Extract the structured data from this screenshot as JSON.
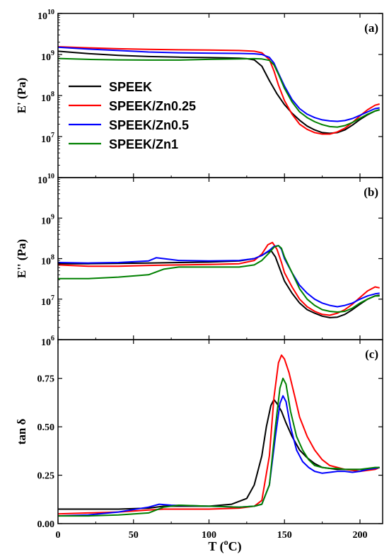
{
  "figure": {
    "x_label_text": "T (",
    "x_label_degree": "o",
    "x_label_unit": "C)"
  },
  "chart_data": [
    {
      "type": "line",
      "panel_label": "(a)",
      "ylabel_main": "E' (Pa)",
      "y_scale": "log",
      "ylim": [
        1000000,
        10000000000
      ],
      "y_ticks": [
        {
          "value": 10000000,
          "base": "10",
          "exp": "7"
        },
        {
          "value": 100000000,
          "base": "10",
          "exp": "8"
        },
        {
          "value": 1000000000,
          "base": "10",
          "exp": "9"
        },
        {
          "value": 10000000000,
          "base": "10",
          "exp": "10"
        }
      ],
      "xlim": [
        0,
        215
      ],
      "legend_position": "center-left",
      "series": [
        {
          "name": "SPEEK",
          "color": "#000000",
          "x": [
            0,
            20,
            40,
            60,
            80,
            100,
            110,
            120,
            125,
            130,
            135,
            140,
            145,
            150,
            155,
            160,
            165,
            170,
            175,
            180,
            185,
            190,
            195,
            200,
            205,
            210,
            213
          ],
          "y": [
            1200000000,
            1050000000,
            950000000,
            890000000,
            860000000,
            840000000,
            830000000,
            810000000,
            790000000,
            740000000,
            520000000,
            230000000,
            110000000,
            60000000,
            37000000,
            25000000,
            18000000,
            14500000,
            12500000,
            12000000,
            12500000,
            14500000,
            19000000,
            26000000,
            34000000,
            42000000,
            45000000
          ]
        },
        {
          "name": "SPEEK/Zn0.25",
          "color": "#ff0000",
          "x": [
            0,
            20,
            40,
            60,
            80,
            100,
            120,
            130,
            135,
            140,
            143,
            146,
            150,
            155,
            160,
            165,
            170,
            175,
            180,
            185,
            190,
            195,
            200,
            205,
            210,
            213
          ],
          "y": [
            1550000000,
            1450000000,
            1380000000,
            1330000000,
            1300000000,
            1280000000,
            1250000000,
            1200000000,
            1100000000,
            750000000,
            400000000,
            180000000,
            75000000,
            35000000,
            20000000,
            15000000,
            12500000,
            11500000,
            11500000,
            13000000,
            16000000,
            22000000,
            32000000,
            45000000,
            58000000,
            62000000
          ]
        },
        {
          "name": "SPEEK/Zn0.5",
          "color": "#0000ff",
          "x": [
            0,
            20,
            40,
            60,
            80,
            100,
            120,
            130,
            135,
            140,
            143,
            146,
            150,
            155,
            160,
            165,
            170,
            175,
            180,
            185,
            190,
            195,
            200,
            205,
            210,
            213
          ],
          "y": [
            1500000000,
            1350000000,
            1250000000,
            1150000000,
            1100000000,
            1080000000,
            1060000000,
            1040000000,
            1000000000,
            850000000,
            620000000,
            350000000,
            170000000,
            80000000,
            48000000,
            35000000,
            29000000,
            25500000,
            24000000,
            23500000,
            24500000,
            27500000,
            33000000,
            40000000,
            48000000,
            50000000
          ]
        },
        {
          "name": "SPEEK/Zn1",
          "color": "#008000",
          "x": [
            0,
            20,
            40,
            60,
            80,
            100,
            120,
            130,
            135,
            140,
            143,
            146,
            150,
            155,
            160,
            165,
            170,
            175,
            180,
            185,
            190,
            195,
            200,
            205,
            210,
            213
          ],
          "y": [
            800000000,
            760000000,
            740000000,
            730000000,
            730000000,
            760000000,
            780000000,
            790000000,
            780000000,
            720000000,
            560000000,
            330000000,
            150000000,
            70000000,
            40000000,
            29000000,
            23000000,
            19500000,
            17500000,
            17000000,
            18500000,
            22000000,
            28000000,
            35000000,
            42000000,
            45000000
          ]
        }
      ]
    },
    {
      "type": "line",
      "panel_label": "(b)",
      "ylabel_main": "E'' (Pa)",
      "y_scale": "log",
      "ylim": [
        1000000,
        10000000000
      ],
      "y_ticks": [
        {
          "value": 1000000,
          "base": "10",
          "exp": "6"
        },
        {
          "value": 10000000,
          "base": "10",
          "exp": "7"
        },
        {
          "value": 100000000,
          "base": "10",
          "exp": "8"
        },
        {
          "value": 1000000000,
          "base": "10",
          "exp": "9"
        },
        {
          "value": 10000000000,
          "base": "10",
          "exp": "10"
        }
      ],
      "xlim": [
        0,
        215
      ],
      "series": [
        {
          "name": "SPEEK",
          "color": "#000000",
          "x": [
            0,
            20,
            40,
            60,
            80,
            100,
            120,
            130,
            135,
            138,
            141,
            144,
            147,
            150,
            155,
            160,
            165,
            170,
            175,
            180,
            185,
            190,
            195,
            200,
            205,
            210,
            213
          ],
          "y": [
            75000000,
            75000000,
            76000000,
            78000000,
            80000000,
            82000000,
            88000000,
            100000000,
            120000000,
            140000000,
            160000000,
            110000000,
            55000000,
            28000000,
            14000000,
            8000000,
            5500000,
            4500000,
            3800000,
            3500000,
            3600000,
            4200000,
            5500000,
            7500000,
            10000000,
            12000000,
            12500000
          ]
        },
        {
          "name": "SPEEK/Zn0.25",
          "color": "#ff0000",
          "x": [
            0,
            20,
            40,
            60,
            80,
            100,
            120,
            130,
            135,
            139,
            142,
            145,
            148,
            150,
            155,
            160,
            165,
            170,
            175,
            180,
            185,
            190,
            195,
            200,
            205,
            210,
            213
          ],
          "y": [
            70000000,
            65000000,
            65000000,
            68000000,
            70000000,
            72000000,
            75000000,
            90000000,
            130000000,
            220000000,
            250000000,
            170000000,
            80000000,
            45000000,
            20000000,
            10000000,
            6500000,
            5000000,
            4200000,
            4000000,
            4500000,
            5500000,
            7500000,
            11000000,
            16000000,
            20000000,
            19000000
          ]
        },
        {
          "name": "SPEEK/Zn0.5",
          "color": "#0000ff",
          "x": [
            0,
            20,
            40,
            60,
            65,
            70,
            80,
            100,
            120,
            130,
            135,
            140,
            143,
            146,
            148,
            150,
            155,
            160,
            165,
            170,
            175,
            180,
            185,
            190,
            195,
            200,
            205,
            210,
            213
          ],
          "y": [
            80000000,
            78000000,
            80000000,
            88000000,
            105000000,
            100000000,
            90000000,
            88000000,
            90000000,
            100000000,
            120000000,
            160000000,
            200000000,
            210000000,
            170000000,
            100000000,
            45000000,
            22000000,
            14000000,
            10000000,
            8000000,
            7000000,
            6500000,
            7000000,
            8000000,
            10000000,
            12000000,
            13500000,
            14000000
          ]
        },
        {
          "name": "SPEEK/Zn1",
          "color": "#008000",
          "x": [
            0,
            20,
            40,
            60,
            70,
            80,
            100,
            120,
            130,
            135,
            140,
            143,
            146,
            148,
            150,
            155,
            160,
            165,
            170,
            175,
            180,
            185,
            190,
            195,
            200,
            205,
            210,
            213
          ],
          "y": [
            32000000,
            32000000,
            35000000,
            40000000,
            55000000,
            62000000,
            62000000,
            62000000,
            70000000,
            90000000,
            140000000,
            190000000,
            210000000,
            180000000,
            110000000,
            45000000,
            18000000,
            10000000,
            7000000,
            5500000,
            5000000,
            4800000,
            5000000,
            6000000,
            8000000,
            10000000,
            12000000,
            12000000
          ]
        }
      ]
    },
    {
      "type": "line",
      "panel_label": "(c)",
      "ylabel_main": "tan δ",
      "y_scale": "linear",
      "ylim": [
        0,
        0.95
      ],
      "y_ticks": [
        {
          "value": 0.0,
          "label": "0.00"
        },
        {
          "value": 0.25,
          "label": "0.25"
        },
        {
          "value": 0.5,
          "label": "0.50"
        },
        {
          "value": 0.75,
          "label": "0.75"
        }
      ],
      "xlim": [
        0,
        215
      ],
      "x_ticks": [
        0,
        50,
        100,
        150,
        200
      ],
      "series": [
        {
          "name": "SPEEK",
          "color": "#000000",
          "x": [
            0,
            20,
            40,
            60,
            70,
            80,
            100,
            115,
            125,
            130,
            135,
            138,
            141,
            143,
            145,
            148,
            151,
            155,
            160,
            165,
            170,
            175,
            180,
            185,
            190,
            195,
            200,
            205,
            210,
            213
          ],
          "y": [
            0.075,
            0.075,
            0.075,
            0.08,
            0.09,
            0.09,
            0.09,
            0.1,
            0.13,
            0.2,
            0.35,
            0.5,
            0.61,
            0.64,
            0.62,
            0.58,
            0.52,
            0.45,
            0.38,
            0.34,
            0.31,
            0.29,
            0.285,
            0.28,
            0.28,
            0.28,
            0.28,
            0.28,
            0.285,
            0.29
          ]
        },
        {
          "name": "SPEEK/Zn0.25",
          "color": "#ff0000",
          "x": [
            0,
            20,
            40,
            60,
            70,
            80,
            100,
            120,
            130,
            135,
            140,
            143,
            146,
            148,
            150,
            153,
            157,
            160,
            165,
            170,
            175,
            180,
            185,
            190,
            195,
            200,
            205,
            210,
            213
          ],
          "y": [
            0.05,
            0.055,
            0.06,
            0.07,
            0.075,
            0.075,
            0.075,
            0.08,
            0.09,
            0.12,
            0.35,
            0.65,
            0.83,
            0.87,
            0.85,
            0.78,
            0.65,
            0.55,
            0.45,
            0.38,
            0.33,
            0.3,
            0.29,
            0.28,
            0.275,
            0.27,
            0.275,
            0.28,
            0.29
          ]
        },
        {
          "name": "SPEEK/Zn0.5",
          "color": "#0000ff",
          "x": [
            0,
            20,
            40,
            60,
            67,
            75,
            100,
            120,
            130,
            135,
            140,
            144,
            147,
            149,
            151,
            154,
            158,
            162,
            166,
            170,
            175,
            180,
            185,
            190,
            195,
            200,
            205,
            210,
            213
          ],
          "y": [
            0.04,
            0.045,
            0.06,
            0.085,
            0.1,
            0.095,
            0.09,
            0.085,
            0.09,
            0.1,
            0.2,
            0.45,
            0.62,
            0.66,
            0.63,
            0.5,
            0.38,
            0.32,
            0.29,
            0.27,
            0.26,
            0.265,
            0.27,
            0.27,
            0.265,
            0.27,
            0.28,
            0.285,
            0.29
          ]
        },
        {
          "name": "SPEEK/Zn1",
          "color": "#008000",
          "x": [
            0,
            20,
            40,
            60,
            70,
            80,
            100,
            120,
            130,
            135,
            140,
            144,
            147,
            149,
            151,
            154,
            158,
            162,
            166,
            170,
            175,
            180,
            185,
            190,
            195,
            200,
            205,
            210,
            213
          ],
          "y": [
            0.04,
            0.04,
            0.045,
            0.055,
            0.085,
            0.095,
            0.09,
            0.085,
            0.09,
            0.1,
            0.2,
            0.5,
            0.7,
            0.75,
            0.72,
            0.58,
            0.45,
            0.38,
            0.33,
            0.3,
            0.29,
            0.285,
            0.285,
            0.28,
            0.28,
            0.28,
            0.285,
            0.29,
            0.29
          ]
        }
      ]
    }
  ]
}
